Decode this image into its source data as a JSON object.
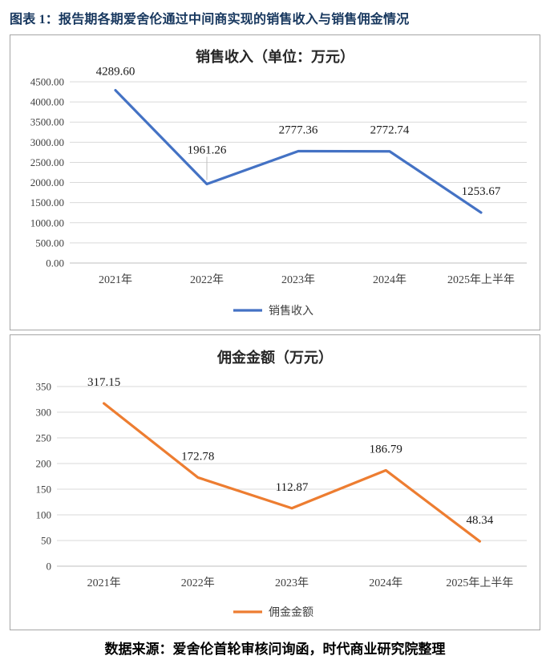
{
  "page": {
    "title": "图表 1：报告期各期爱舍伦通过中间商实现的销售收入与销售佣金情况",
    "source": "数据来源：爱舍伦首轮审核问询函，时代商业研究院整理"
  },
  "colors": {
    "revenue_line": "#4472C4",
    "commission_line": "#ED7D31",
    "title_navy": "#17375E",
    "gridline": "#D9D9D9",
    "panel_border": "#A6A6A6"
  },
  "chart_data": [
    {
      "type": "line",
      "title": "销售收入（单位：万元）",
      "categories": [
        "2021年",
        "2022年",
        "2023年",
        "2024年",
        "2025年上半年"
      ],
      "series": [
        {
          "name": "销售收入",
          "color": "#4472C4",
          "values": [
            4289.6,
            1961.26,
            2777.36,
            2772.74,
            1253.67
          ],
          "labels": [
            "4289.60",
            "1961.26",
            "2777.36",
            "2772.74",
            "1253.67"
          ]
        }
      ],
      "xlabel": "",
      "ylabel": "",
      "ylim": [
        0,
        4500
      ],
      "ytick_step": 500,
      "ytick_decimals": 2,
      "ytick_labels": [
        "0.00",
        "500.00",
        "1000.00",
        "1500.00",
        "2000.00",
        "2500.00",
        "3000.00",
        "3500.00",
        "4000.00",
        "4500.00"
      ],
      "grid": true,
      "legend_position": "bottom"
    },
    {
      "type": "line",
      "title": "佣金金额（万元）",
      "categories": [
        "2021年",
        "2022年",
        "2023年",
        "2024年",
        "2025年上半年"
      ],
      "series": [
        {
          "name": "佣金金额",
          "color": "#ED7D31",
          "values": [
            317.15,
            172.78,
            112.87,
            186.79,
            48.34
          ],
          "labels": [
            "317.15",
            "172.78",
            "112.87",
            "186.79",
            "48.34"
          ]
        }
      ],
      "xlabel": "",
      "ylabel": "",
      "ylim": [
        0,
        350
      ],
      "ytick_step": 50,
      "ytick_decimals": 0,
      "ytick_labels": [
        "0",
        "50",
        "100",
        "150",
        "200",
        "250",
        "300",
        "350"
      ],
      "grid": true,
      "legend_position": "bottom"
    }
  ]
}
